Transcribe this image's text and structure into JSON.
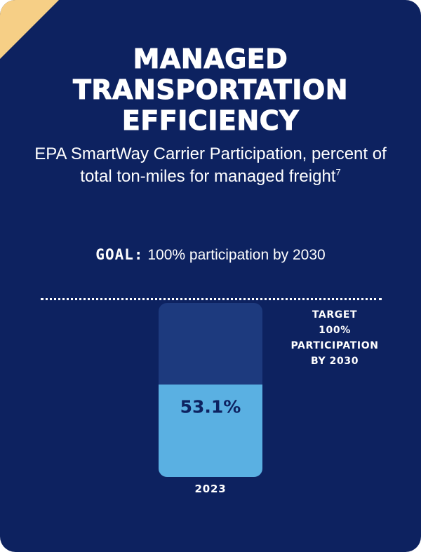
{
  "colors": {
    "background": "#0d2260",
    "corner_accent": "#f6cf86",
    "bar_remaining": "#1d3a7e",
    "bar_value": "#5ab0e2",
    "value_text": "#0d2260",
    "text": "#ffffff"
  },
  "header": {
    "title": "MANAGED\nTRANSPORTATION\nEFFICIENCY",
    "subtitle": "EPA SmartWay Carrier Participation, percent of total ton-miles for managed freight",
    "footnote": "7"
  },
  "goal": {
    "key": "GOAL:",
    "text": " 100% participation by 2030"
  },
  "target": {
    "label": "TARGET\n100%\nPARTICIPATION\nBY 2030"
  },
  "chart_data": {
    "type": "bar",
    "categories": [
      "2023"
    ],
    "values": [
      53.1
    ],
    "value_labels": [
      "53.1%"
    ],
    "ylim": [
      0,
      100
    ],
    "target": 100,
    "grid": false
  }
}
